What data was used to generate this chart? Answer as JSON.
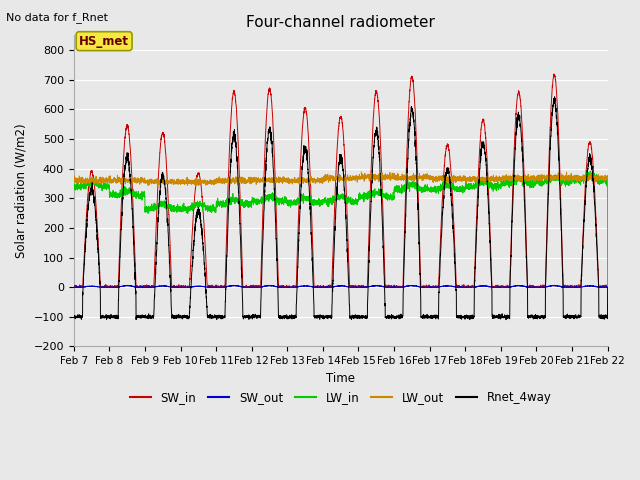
{
  "title": "Four-channel radiometer",
  "top_left_text": "No data for f_Rnet",
  "ylabel": "Solar radiation (W/m2)",
  "xlabel": "Time",
  "legend_box_label": "HS_met",
  "ylim": [
    -200,
    850
  ],
  "yticks": [
    -200,
    -100,
    0,
    100,
    200,
    300,
    400,
    500,
    600,
    700,
    800
  ],
  "x_labels": [
    "Feb 7",
    "Feb 8",
    "Feb 9",
    "Feb 10",
    "Feb 11",
    "Feb 12",
    "Feb 13",
    "Feb 14",
    "Feb 15",
    "Feb 16",
    "Feb 17",
    "Feb 18",
    "Feb 19",
    "Feb 20",
    "Feb 21",
    "Feb 22"
  ],
  "colors": {
    "SW_in": "#cc0000",
    "SW_out": "#0000cc",
    "LW_in": "#00cc00",
    "LW_out": "#cc8800",
    "Rnet_4way": "#000000"
  },
  "background_color": "#e8e8e8",
  "plot_bg_color": "#e8e8e8",
  "grid_color": "#ffffff",
  "figsize": [
    6.4,
    4.8
  ],
  "dpi": 100,
  "sw_in_peaks": [
    390,
    545,
    520,
    385,
    660,
    670,
    605,
    575,
    660,
    710,
    480,
    565,
    660,
    715,
    490
  ],
  "sw_out_peaks": [
    3,
    5,
    4,
    3,
    5,
    5,
    4,
    4,
    5,
    5,
    4,
    4,
    5,
    5,
    4
  ],
  "lw_in_base": [
    340,
    310,
    265,
    265,
    280,
    290,
    285,
    290,
    305,
    330,
    330,
    340,
    350,
    355,
    360
  ],
  "lw_out_base": [
    360,
    360,
    355,
    355,
    360,
    362,
    360,
    368,
    372,
    370,
    365,
    365,
    368,
    370,
    368
  ],
  "rnet_night": -100
}
